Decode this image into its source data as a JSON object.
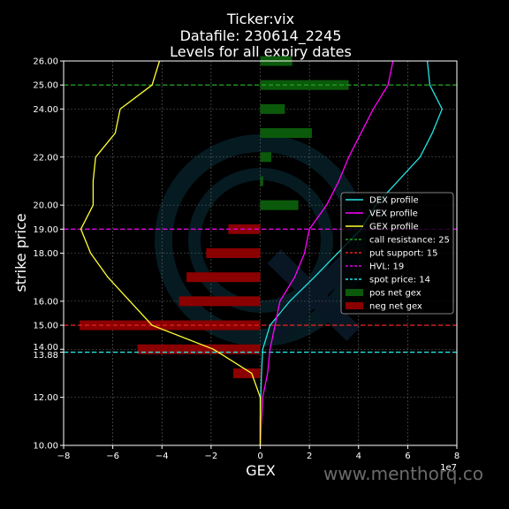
{
  "chart_data": {
    "type": "line",
    "title_lines": [
      "Ticker:vix",
      "Datafile: 230614_2245",
      "Levels for all expiry dates"
    ],
    "xlabel": "GEX",
    "ylabel": "strike price",
    "x_offset_label": "1e7",
    "xlim": [
      -8,
      8
    ],
    "ylim": [
      10,
      26
    ],
    "x_ticks": [
      -8,
      -6,
      -4,
      -2,
      0,
      2,
      4,
      6,
      8
    ],
    "x_tick_labels": [
      "−8",
      "−6",
      "−4",
      "−2",
      "0",
      "2",
      "4",
      "6",
      "8"
    ],
    "y_ticks": [
      10,
      12,
      13.88,
      14,
      15,
      16,
      18,
      19,
      20,
      22,
      24,
      25,
      26
    ],
    "y_tick_labels": [
      "10.00",
      "12.00",
      "13.88",
      "14.00",
      "15.00",
      "16.00",
      "18.00",
      "19.00",
      "20.00",
      "22.00",
      "24.00",
      "25.00",
      "26.00"
    ],
    "grid": true,
    "legend_position": "center-right",
    "series": [
      {
        "name": "DEX profile",
        "color": "#22e5e5",
        "points": [
          [
            6.8,
            26
          ],
          [
            6.9,
            25
          ],
          [
            7.4,
            24
          ],
          [
            7.0,
            23
          ],
          [
            6.5,
            22
          ],
          [
            5.6,
            21
          ],
          [
            4.7,
            20
          ],
          [
            4.1,
            19
          ],
          [
            2.2,
            17
          ],
          [
            1.2,
            16
          ],
          [
            0.4,
            15
          ],
          [
            0.1,
            14
          ],
          [
            0.05,
            13
          ],
          [
            0.02,
            12
          ],
          [
            0.0,
            11
          ],
          [
            0.0,
            10
          ]
        ]
      },
      {
        "name": "VEX profile",
        "color": "#ff00ff",
        "points": [
          [
            5.4,
            26
          ],
          [
            5.2,
            25
          ],
          [
            4.6,
            24
          ],
          [
            4.1,
            23
          ],
          [
            3.6,
            22
          ],
          [
            3.2,
            21
          ],
          [
            2.7,
            20
          ],
          [
            2.0,
            19
          ],
          [
            1.8,
            18
          ],
          [
            1.4,
            17
          ],
          [
            0.8,
            16
          ],
          [
            0.6,
            15
          ],
          [
            0.4,
            14
          ],
          [
            0.3,
            13
          ],
          [
            0.1,
            12
          ],
          [
            0.05,
            11
          ],
          [
            0.0,
            10
          ]
        ]
      },
      {
        "name": "GEX profile",
        "color": "#ffff33",
        "points": [
          [
            -4.1,
            26
          ],
          [
            -4.4,
            25
          ],
          [
            -5.7,
            24
          ],
          [
            -5.9,
            23
          ],
          [
            -6.7,
            22
          ],
          [
            -6.8,
            21
          ],
          [
            -6.8,
            20
          ],
          [
            -7.3,
            19
          ],
          [
            -6.9,
            18
          ],
          [
            -6.2,
            17
          ],
          [
            -5.3,
            16
          ],
          [
            -4.4,
            15
          ],
          [
            -1.9,
            14
          ],
          [
            -0.35,
            13
          ],
          [
            0.0,
            12
          ],
          [
            0.0,
            11
          ],
          [
            0.0,
            10
          ]
        ]
      }
    ],
    "hlines": [
      {
        "name": "call resistance: 25",
        "y": 25,
        "color": "#1f9e1f"
      },
      {
        "name": "put support: 15",
        "y": 15,
        "color": "#e02020"
      },
      {
        "name": "HVL: 19",
        "y": 19,
        "color": "#e000e0"
      },
      {
        "name": "spot price: 14",
        "y": 13.88,
        "color": "#22e5e5"
      }
    ],
    "pos_net_gex": {
      "name": "pos net gex",
      "color": "#0b5a0b",
      "bars": [
        [
          26,
          1.3
        ],
        [
          25,
          3.6
        ],
        [
          24,
          1.0
        ],
        [
          23,
          2.1
        ],
        [
          22,
          0.45
        ],
        [
          21,
          0.12
        ],
        [
          20,
          1.55
        ]
      ]
    },
    "neg_net_gex": {
      "name": "neg net gex",
      "color": "#8b0000",
      "bars": [
        [
          19,
          -1.3
        ],
        [
          18,
          -2.2
        ],
        [
          17,
          -3.0
        ],
        [
          16,
          -3.3
        ],
        [
          15,
          -7.35
        ],
        [
          14,
          -5.0
        ],
        [
          13,
          -1.1
        ]
      ]
    }
  },
  "watermark": "www.menthorq.co"
}
